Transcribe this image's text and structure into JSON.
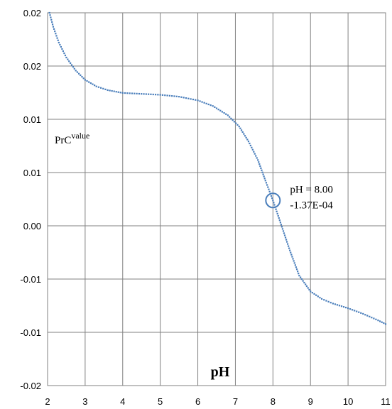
{
  "chart_data": {
    "type": "scatter",
    "title": "",
    "xlabel": "pH",
    "ylabel": "",
    "xlim": [
      2,
      11
    ],
    "ylim": [
      -0.02,
      0.02
    ],
    "x_ticks": [
      "2",
      "3",
      "4",
      "5",
      "6",
      "7",
      "8",
      "9",
      "10",
      "11"
    ],
    "y_ticks": [
      "-0.02",
      "-0.01",
      "-0.01",
      "0.00",
      "0.01",
      "0.01",
      "0.02",
      "0.02"
    ],
    "grid": true,
    "series_label": {
      "base": "PrC",
      "superscript": "value"
    },
    "annotation": {
      "line1": "pH  = 8.00",
      "line2": "-1.37E-04",
      "x": 8.0,
      "y": -0.000137
    },
    "series": [
      {
        "color": "#4a7ebb",
        "points": [
          [
            2.05,
            0.02
          ],
          [
            2.15,
            0.0185
          ],
          [
            2.3,
            0.0168
          ],
          [
            2.5,
            0.0152
          ],
          [
            2.75,
            0.0138
          ],
          [
            3.0,
            0.0128
          ],
          [
            3.3,
            0.0121
          ],
          [
            3.6,
            0.0117
          ],
          [
            4.0,
            0.0114
          ],
          [
            4.5,
            0.0113
          ],
          [
            5.0,
            0.0112
          ],
          [
            5.5,
            0.011
          ],
          [
            6.0,
            0.0106
          ],
          [
            6.4,
            0.01
          ],
          [
            6.8,
            0.009
          ],
          [
            7.1,
            0.0078
          ],
          [
            7.35,
            0.0062
          ],
          [
            7.6,
            0.0042
          ],
          [
            7.8,
            0.002
          ],
          [
            8.0,
            -0.000137
          ],
          [
            8.2,
            -0.0025
          ],
          [
            8.45,
            -0.0055
          ],
          [
            8.7,
            -0.0082
          ],
          [
            9.0,
            -0.0099
          ],
          [
            9.3,
            -0.0107
          ],
          [
            9.6,
            -0.0112
          ],
          [
            10.0,
            -0.0117
          ],
          [
            10.4,
            -0.0123
          ],
          [
            10.8,
            -0.013
          ],
          [
            11.0,
            -0.0134
          ]
        ]
      }
    ]
  }
}
